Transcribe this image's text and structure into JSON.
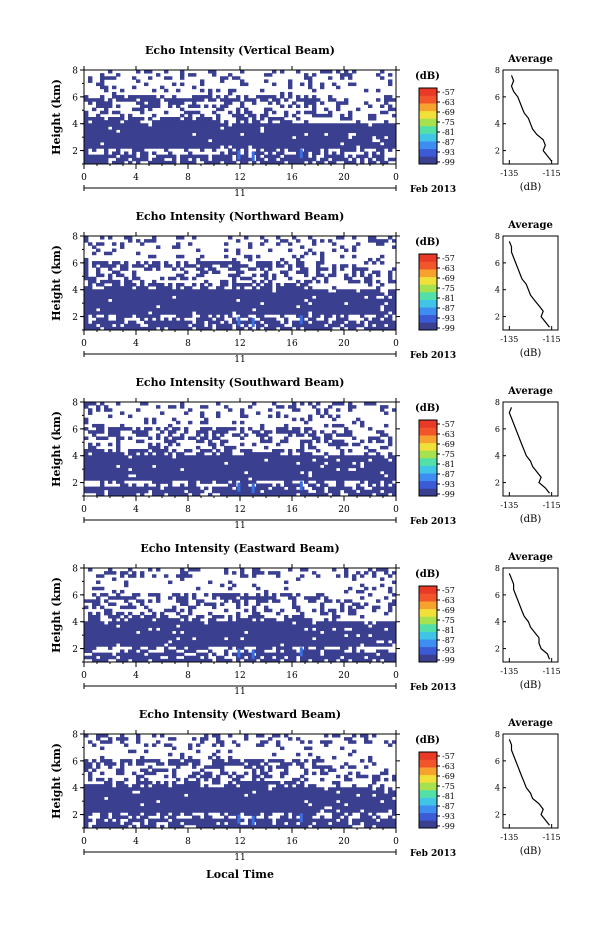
{
  "figure": {
    "xlabel": "Local Time",
    "date_label": "Feb 2013",
    "day_label": "11",
    "colorbar_unit": "(dB)",
    "colorbar_ticks": [
      "-57",
      "-63",
      "-69",
      "-75",
      "-81",
      "-87",
      "-93",
      "-99"
    ],
    "colorbar_colors": [
      "#3a3f8f",
      "#3b5bd6",
      "#3d8ef0",
      "#3fc6e6",
      "#52e0a8",
      "#a6e24f",
      "#f2e03a",
      "#f7a22e",
      "#f2552a",
      "#e83a26"
    ]
  },
  "chart_data": [
    {
      "type": "heatmap",
      "title": "Echo Intensity (Vertical Beam)",
      "ylabel": "Height (km)",
      "xlim": [
        0,
        24
      ],
      "ylim": [
        1,
        8
      ],
      "x_ticks": [
        "0",
        "4",
        "8",
        "12",
        "16",
        "20",
        "0"
      ],
      "y_ticks": [
        "2",
        "4",
        "6",
        "8"
      ],
      "color_range_dB": [
        -99,
        -57
      ],
      "profile": {
        "title": "Average",
        "xlabel": "(dB)",
        "x_ticks": [
          "-135",
          "-115"
        ],
        "y_ticks": [
          "2",
          "4",
          "6",
          "8"
        ],
        "height_km": [
          1.2,
          1.6,
          2.0,
          2.4,
          2.8,
          3.2,
          3.6,
          4.0,
          4.4,
          4.8,
          5.2,
          5.6,
          6.0,
          6.4,
          6.8,
          7.2,
          7.6
        ],
        "avg_dB": [
          -115,
          -117,
          -119,
          -118,
          -119,
          -122,
          -124,
          -125,
          -126,
          -128,
          -129,
          -130,
          -131,
          -133,
          -134,
          -133,
          -134
        ]
      }
    },
    {
      "type": "heatmap",
      "title": "Echo Intensity (Northward Beam)",
      "ylabel": "Height (km)",
      "xlim": [
        0,
        24
      ],
      "ylim": [
        1,
        8
      ],
      "x_ticks": [
        "0",
        "4",
        "8",
        "12",
        "16",
        "20",
        "0"
      ],
      "y_ticks": [
        "2",
        "4",
        "6",
        "8"
      ],
      "color_range_dB": [
        -99,
        -57
      ],
      "profile": {
        "title": "Average",
        "xlabel": "(dB)",
        "x_ticks": [
          "-135",
          "-115"
        ],
        "y_ticks": [
          "2",
          "4",
          "6",
          "8"
        ],
        "height_km": [
          1.2,
          1.6,
          2.0,
          2.4,
          2.8,
          3.2,
          3.6,
          4.0,
          4.4,
          4.8,
          5.2,
          5.6,
          6.0,
          6.4,
          6.8,
          7.2,
          7.6
        ],
        "avg_dB": [
          -116,
          -118,
          -120,
          -119,
          -121,
          -123,
          -125,
          -126,
          -127,
          -129,
          -130,
          -131,
          -132,
          -133,
          -134,
          -134,
          -135
        ]
      }
    },
    {
      "type": "heatmap",
      "title": "Echo Intensity (Southward Beam)",
      "ylabel": "Height (km)",
      "xlim": [
        0,
        24
      ],
      "ylim": [
        1,
        8
      ],
      "x_ticks": [
        "0",
        "4",
        "8",
        "12",
        "16",
        "20",
        "0"
      ],
      "y_ticks": [
        "2",
        "4",
        "6",
        "8"
      ],
      "color_range_dB": [
        -99,
        -57
      ],
      "profile": {
        "title": "Average",
        "xlabel": "(dB)",
        "x_ticks": [
          "-135",
          "-115"
        ],
        "y_ticks": [
          "2",
          "4",
          "6",
          "8"
        ],
        "height_km": [
          1.2,
          1.6,
          2.0,
          2.4,
          2.8,
          3.2,
          3.6,
          4.0,
          4.4,
          4.8,
          5.2,
          5.6,
          6.0,
          6.4,
          6.8,
          7.2,
          7.6
        ],
        "avg_dB": [
          -116,
          -118,
          -121,
          -120,
          -122,
          -124,
          -125,
          -127,
          -128,
          -129,
          -130,
          -131,
          -132,
          -133,
          -134,
          -135,
          -134
        ]
      }
    },
    {
      "type": "heatmap",
      "title": "Echo Intensity (Eastward Beam)",
      "ylabel": "Height (km)",
      "xlim": [
        0,
        24
      ],
      "ylim": [
        1,
        8
      ],
      "x_ticks": [
        "0",
        "4",
        "8",
        "12",
        "16",
        "20",
        "0"
      ],
      "y_ticks": [
        "2",
        "4",
        "6",
        "8"
      ],
      "color_range_dB": [
        -99,
        -57
      ],
      "profile": {
        "title": "Average",
        "xlabel": "(dB)",
        "x_ticks": [
          "-135",
          "-115"
        ],
        "y_ticks": [
          "2",
          "4",
          "6",
          "8"
        ],
        "height_km": [
          1.2,
          1.6,
          2.0,
          2.4,
          2.8,
          3.2,
          3.6,
          4.0,
          4.4,
          4.8,
          5.2,
          5.6,
          6.0,
          6.4,
          6.8,
          7.2,
          7.6
        ],
        "avg_dB": [
          -116,
          -117,
          -120,
          -121,
          -121,
          -123,
          -125,
          -126,
          -128,
          -129,
          -130,
          -131,
          -132,
          -133,
          -133,
          -134,
          -135
        ]
      }
    },
    {
      "type": "heatmap",
      "title": "Echo Intensity (Westward Beam)",
      "ylabel": "Height (km)",
      "xlim": [
        0,
        24
      ],
      "ylim": [
        1,
        8
      ],
      "x_ticks": [
        "0",
        "4",
        "8",
        "12",
        "16",
        "20",
        "0"
      ],
      "y_ticks": [
        "2",
        "4",
        "6",
        "8"
      ],
      "color_range_dB": [
        -99,
        -57
      ],
      "profile": {
        "title": "Average",
        "xlabel": "(dB)",
        "x_ticks": [
          "-135",
          "-115"
        ],
        "y_ticks": [
          "2",
          "4",
          "6",
          "8"
        ],
        "height_km": [
          1.2,
          1.6,
          2.0,
          2.4,
          2.8,
          3.2,
          3.6,
          4.0,
          4.4,
          4.8,
          5.2,
          5.6,
          6.0,
          6.4,
          6.8,
          7.2,
          7.6
        ],
        "avg_dB": [
          -116,
          -118,
          -120,
          -119,
          -121,
          -124,
          -125,
          -127,
          -128,
          -129,
          -130,
          -131,
          -132,
          -133,
          -134,
          -134,
          -135
        ]
      }
    }
  ]
}
